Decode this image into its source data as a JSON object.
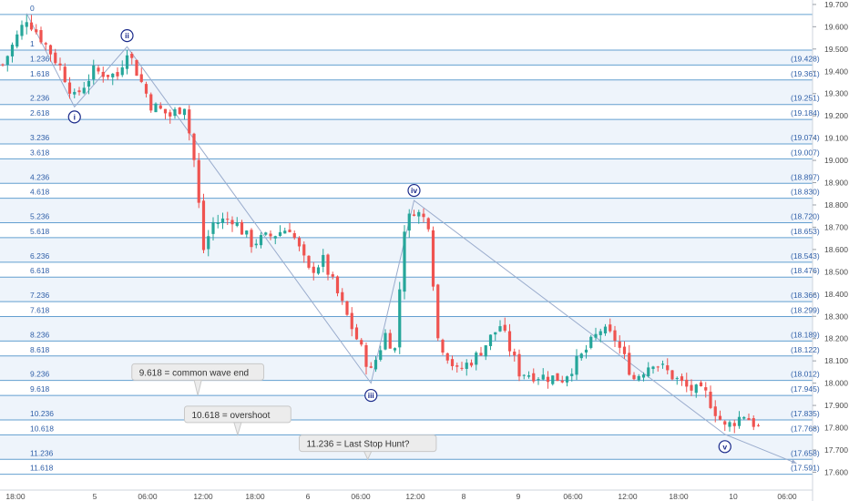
{
  "chart_data": {
    "type": "candlestick",
    "title": "",
    "xlabel": "",
    "ylabel": "",
    "ylim": [
      17.52,
      19.72
    ],
    "y_ticks": [
      "19.700",
      "19.600",
      "19.500",
      "19.400",
      "19.300",
      "19.200",
      "19.100",
      "19.000",
      "18.900",
      "18.800",
      "18.700",
      "18.600",
      "18.500",
      "18.400",
      "18.300",
      "18.200",
      "18.100",
      "18.000",
      "17.900",
      "17.800",
      "17.700",
      "17.600"
    ],
    "x_ticks": [
      "18:00",
      "5",
      "06:00",
      "12:00",
      "18:00",
      "6",
      "06:00",
      "12:00",
      "8",
      "9",
      "06:00",
      "12:00",
      "18:00",
      "10",
      "06:00"
    ],
    "fib_levels": [
      {
        "label": "0",
        "price": 19.655,
        "value": ""
      },
      {
        "label": "1",
        "price": 19.495,
        "value": ""
      },
      {
        "label": "1.236",
        "price": 19.428,
        "value": "(19.428)"
      },
      {
        "label": "1.618",
        "price": 19.361,
        "value": "(19.361)"
      },
      {
        "label": "2.236",
        "price": 19.251,
        "value": "(19.251)"
      },
      {
        "label": "2.618",
        "price": 19.184,
        "value": "(19.184)"
      },
      {
        "label": "3.236",
        "price": 19.074,
        "value": "(19.074)"
      },
      {
        "label": "3.618",
        "price": 19.007,
        "value": "(19.007)"
      },
      {
        "label": "4.236",
        "price": 18.897,
        "value": "(18.897)"
      },
      {
        "label": "4.618",
        "price": 18.83,
        "value": "(18.830)"
      },
      {
        "label": "5.236",
        "price": 18.72,
        "value": "(18.720)"
      },
      {
        "label": "5.618",
        "price": 18.653,
        "value": "(18.653)"
      },
      {
        "label": "6.236",
        "price": 18.543,
        "value": "(18.543)"
      },
      {
        "label": "6.618",
        "price": 18.476,
        "value": "(18.476)"
      },
      {
        "label": "7.236",
        "price": 18.366,
        "value": "(18.366)"
      },
      {
        "label": "7.618",
        "price": 18.299,
        "value": "(18.299)"
      },
      {
        "label": "8.236",
        "price": 18.189,
        "value": "(18.189)"
      },
      {
        "label": "8.618",
        "price": 18.122,
        "value": "(18.122)"
      },
      {
        "label": "9.236",
        "price": 18.012,
        "value": "(18.012)"
      },
      {
        "label": "9.618",
        "price": 17.945,
        "value": "(17.945)"
      },
      {
        "label": "10.236",
        "price": 17.835,
        "value": "(17.835)"
      },
      {
        "label": "10.618",
        "price": 17.768,
        "value": "(17.768)"
      },
      {
        "label": "11.236",
        "price": 17.658,
        "value": "(17.658)"
      },
      {
        "label": "11.618",
        "price": 17.591,
        "value": "(17.591)"
      }
    ],
    "wave_labels": [
      {
        "label": "i",
        "bar": 15,
        "price": 19.195,
        "position": "below"
      },
      {
        "label": "ii",
        "bar": 26,
        "price": 19.56,
        "position": "above"
      },
      {
        "label": "iii",
        "bar": 77,
        "price": 17.945,
        "position": "below"
      },
      {
        "label": "iv",
        "bar": 86,
        "price": 18.865,
        "position": "above"
      },
      {
        "label": "v",
        "bar": 151,
        "price": 17.715,
        "position": "below"
      }
    ],
    "wave_path": [
      {
        "bar": 5,
        "price": 19.66
      },
      {
        "bar": 15,
        "price": 19.24
      },
      {
        "bar": 26,
        "price": 19.51
      },
      {
        "bar": 77,
        "price": 18.0
      },
      {
        "bar": 86,
        "price": 18.82
      },
      {
        "bar": 151,
        "price": 17.77
      },
      {
        "bar": 166,
        "price": 17.64
      }
    ],
    "annotations": [
      {
        "text": "9.618 = common wave end",
        "bar": 27,
        "price": 18.05,
        "anchor_price": 17.945
      },
      {
        "text": "10.618 = overshoot",
        "bar": 38,
        "price": 17.86,
        "anchor_price": 17.768
      },
      {
        "text": "11.236 = Last Stop Hunt?",
        "bar": 62,
        "price": 17.73,
        "anchor_price": 17.658
      }
    ],
    "anchors": [
      {
        "bar": 0,
        "close": 19.43
      },
      {
        "bar": 5,
        "close": 19.64
      },
      {
        "bar": 8,
        "close": 19.55
      },
      {
        "bar": 12,
        "close": 19.42
      },
      {
        "bar": 15,
        "close": 19.28
      },
      {
        "bar": 19,
        "close": 19.4
      },
      {
        "bar": 24,
        "close": 19.38
      },
      {
        "bar": 26,
        "close": 19.5
      },
      {
        "bar": 31,
        "close": 19.25
      },
      {
        "bar": 35,
        "close": 19.2
      },
      {
        "bar": 38,
        "close": 19.25
      },
      {
        "bar": 40,
        "close": 19.0
      },
      {
        "bar": 42,
        "close": 18.6
      },
      {
        "bar": 44,
        "close": 18.72
      },
      {
        "bar": 48,
        "close": 18.74
      },
      {
        "bar": 52,
        "close": 18.63
      },
      {
        "bar": 56,
        "close": 18.66
      },
      {
        "bar": 60,
        "close": 18.7
      },
      {
        "bar": 64,
        "close": 18.5
      },
      {
        "bar": 67,
        "close": 18.55
      },
      {
        "bar": 70,
        "close": 18.4
      },
      {
        "bar": 73,
        "close": 18.25
      },
      {
        "bar": 77,
        "close": 18.05
      },
      {
        "bar": 80,
        "close": 18.22
      },
      {
        "bar": 82,
        "close": 18.15
      },
      {
        "bar": 84,
        "close": 18.7
      },
      {
        "bar": 86,
        "close": 18.78
      },
      {
        "bar": 89,
        "close": 18.72
      },
      {
        "bar": 91,
        "close": 18.2
      },
      {
        "bar": 95,
        "close": 18.05
      },
      {
        "bar": 99,
        "close": 18.12
      },
      {
        "bar": 104,
        "close": 18.26
      },
      {
        "bar": 108,
        "close": 18.05
      },
      {
        "bar": 113,
        "close": 18.03
      },
      {
        "bar": 117,
        "close": 18.02
      },
      {
        "bar": 121,
        "close": 18.12
      },
      {
        "bar": 125,
        "close": 18.24
      },
      {
        "bar": 128,
        "close": 18.2
      },
      {
        "bar": 132,
        "close": 18.02
      },
      {
        "bar": 136,
        "close": 18.1
      },
      {
        "bar": 139,
        "close": 18.05
      },
      {
        "bar": 143,
        "close": 17.98
      },
      {
        "bar": 147,
        "close": 17.95
      },
      {
        "bar": 151,
        "close": 17.8
      },
      {
        "bar": 155,
        "close": 17.86
      },
      {
        "bar": 158,
        "close": 17.8
      }
    ],
    "bar_count": 159,
    "colors": {
      "up": "#26a69a",
      "down": "#ef5350",
      "fib_line": "#4a90c8",
      "fib_band": "#eef4fb",
      "wave_line": "#9aaccd",
      "wave_circle": "#1a2a8a",
      "axis_text": "#4a4a4a",
      "fib_text": "#2f5fa8"
    }
  }
}
